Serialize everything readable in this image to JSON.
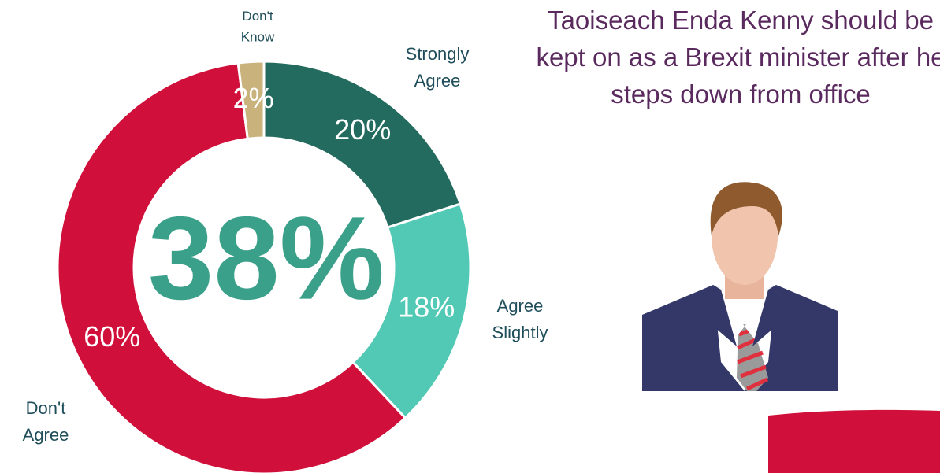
{
  "chart_data": {
    "type": "donut",
    "title": "Taoiseach Enda Kenny should be kept on as a Brexit minister after he steps down from office",
    "center_label": "38%",
    "categories": [
      "Strongly Agree",
      "Agree Slightly",
      "Don't Agree",
      "Don't Know"
    ],
    "values": [
      20,
      18,
      60,
      2
    ],
    "value_labels": [
      "20%",
      "18%",
      "60%",
      "2%"
    ],
    "colors": [
      "#236b5e",
      "#52c9b5",
      "#d0103a",
      "#c9b27c"
    ]
  }
}
